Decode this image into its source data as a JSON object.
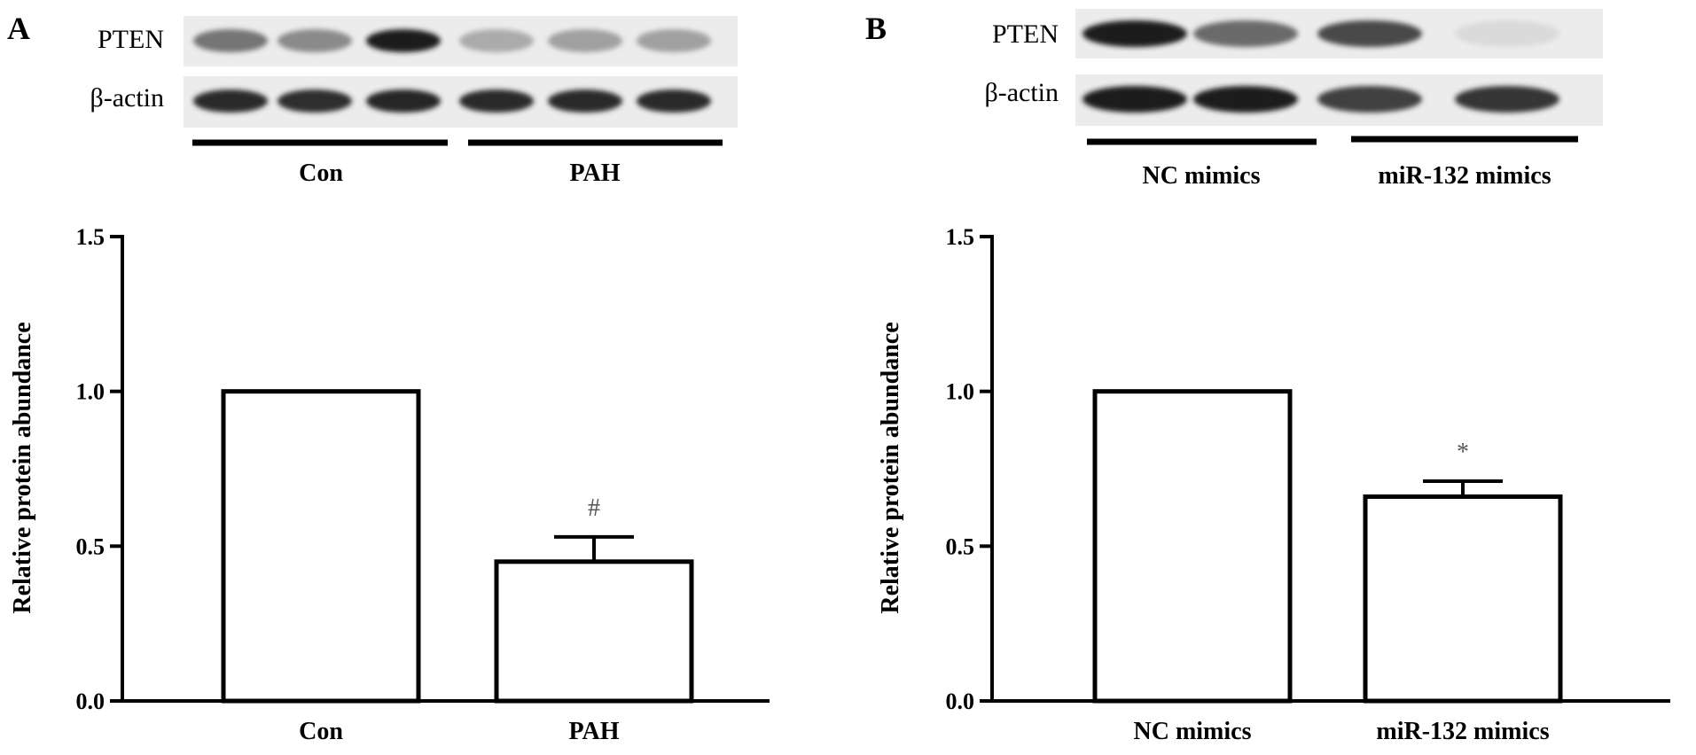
{
  "panels": [
    {
      "letter": "A",
      "blot": {
        "rows": [
          {
            "label": "PTEN",
            "intensities": [
              0.55,
              0.45,
              0.95,
              0.3,
              0.35,
              0.35
            ]
          },
          {
            "label": "β-actin",
            "intensities": [
              0.9,
              0.88,
              0.92,
              0.9,
              0.9,
              0.9
            ]
          }
        ],
        "groups": [
          "Con",
          "PAH"
        ]
      }
    },
    {
      "letter": "B",
      "blot": {
        "rows": [
          {
            "label": "PTEN",
            "intensities": [
              0.95,
              0.6,
              0.75,
              0.08
            ]
          },
          {
            "label": "β-actin",
            "intensities": [
              0.95,
              0.95,
              0.8,
              0.85
            ]
          }
        ],
        "groups": [
          "NC mimics",
          "miR-132 mimics"
        ]
      }
    }
  ],
  "chart_data": [
    {
      "type": "bar",
      "categories": [
        "Con",
        "PAH"
      ],
      "values": [
        1.0,
        0.45
      ],
      "errors": [
        0,
        0.08
      ],
      "annotations": [
        "",
        "#"
      ],
      "ylabel": "Relative protein abundance",
      "ylim": [
        0,
        1.5
      ],
      "yticks": [
        "0.0",
        "0.5",
        "1.0",
        "1.5"
      ],
      "grid": false
    },
    {
      "type": "bar",
      "categories": [
        "NC mimics",
        "miR-132 mimics"
      ],
      "values": [
        1.0,
        0.66
      ],
      "errors": [
        0,
        0.05
      ],
      "annotations": [
        "",
        "*"
      ],
      "ylabel": "Relative protein abundance",
      "ylim": [
        0,
        1.5
      ],
      "yticks": [
        "0.0",
        "0.5",
        "1.0",
        "1.5"
      ],
      "grid": false
    }
  ]
}
